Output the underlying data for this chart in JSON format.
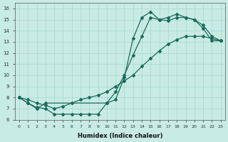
{
  "xlabel": "Humidex (Indice chaleur)",
  "xlim": [
    -0.5,
    23.5
  ],
  "ylim": [
    6,
    16.5
  ],
  "yticks": [
    6,
    7,
    8,
    9,
    10,
    11,
    12,
    13,
    14,
    15,
    16
  ],
  "xticks": [
    0,
    1,
    2,
    3,
    4,
    5,
    6,
    7,
    8,
    9,
    10,
    11,
    12,
    13,
    14,
    15,
    16,
    17,
    18,
    19,
    20,
    21,
    22,
    23
  ],
  "background_color": "#c8ebe4",
  "grid_color": "#a8d8cf",
  "line_color": "#1a6b5a",
  "line1_x": [
    0,
    1,
    2,
    3,
    10,
    11,
    12,
    13,
    14,
    15,
    16,
    17,
    18,
    19,
    20,
    21,
    22,
    23
  ],
  "line1_y": [
    8,
    7.5,
    7.0,
    7.5,
    7.5,
    7.8,
    9.8,
    13.3,
    15.2,
    15.7,
    15.0,
    15.2,
    15.5,
    15.2,
    15.0,
    14.2,
    13.1,
    13.1
  ],
  "line2_x": [
    0,
    1,
    2,
    3,
    4,
    5,
    6,
    7,
    8,
    9,
    10,
    11,
    12,
    13,
    14,
    15,
    16,
    17,
    18,
    19,
    20,
    21,
    22,
    23
  ],
  "line2_y": [
    8,
    7.8,
    7.5,
    7.3,
    7.0,
    7.2,
    7.5,
    7.8,
    8.0,
    8.2,
    8.5,
    9.0,
    9.5,
    10.0,
    10.8,
    11.5,
    12.2,
    12.8,
    13.2,
    13.5,
    13.5,
    13.5,
    13.3,
    13.1
  ],
  "line3_x": [
    0,
    1,
    2,
    3,
    4,
    5,
    6,
    7,
    8,
    9,
    10,
    11,
    12,
    13,
    14,
    15,
    16,
    17,
    18,
    19,
    20,
    21,
    22,
    23
  ],
  "line3_y": [
    8,
    7.5,
    7.1,
    7.0,
    6.5,
    6.5,
    6.5,
    6.5,
    6.5,
    6.5,
    7.5,
    8.5,
    10.0,
    11.8,
    13.5,
    15.2,
    15.0,
    14.9,
    15.2,
    15.2,
    15.0,
    14.5,
    13.5,
    13.1
  ]
}
